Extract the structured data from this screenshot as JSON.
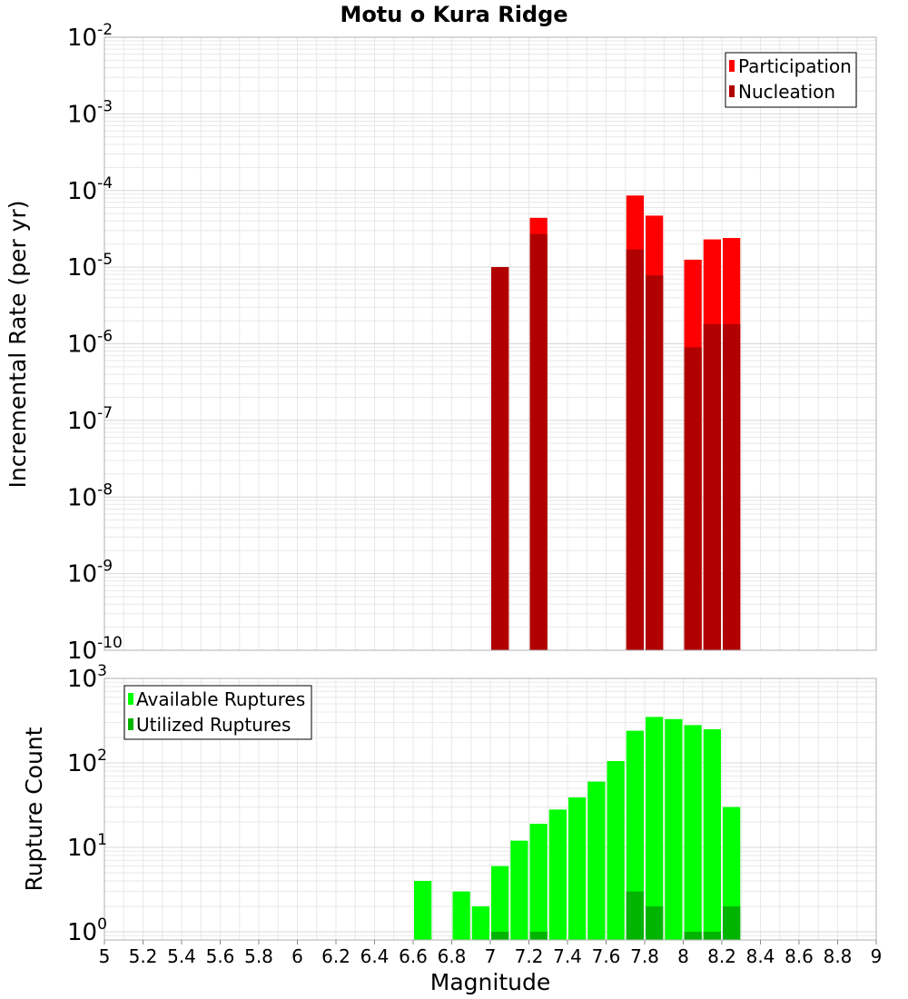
{
  "colors": {
    "participation": "#ff0000",
    "nucleation": "#b00000",
    "available": "#00ff00",
    "utilized": "#00b400",
    "grid": "#e8e8e8",
    "frame": "#b0b0b0"
  },
  "chart_data": {
    "title": "Motu o Kura Ridge",
    "xlabel": "Magnitude",
    "xlim": [
      5,
      9
    ],
    "x_ticks": [
      "5",
      "5.2",
      "5.4",
      "5.6",
      "5.8",
      "6",
      "6.2",
      "6.4",
      "6.6",
      "6.8",
      "7",
      "7.2",
      "7.4",
      "7.6",
      "7.8",
      "8",
      "8.2",
      "8.4",
      "8.6",
      "8.8",
      "9"
    ],
    "grid": true,
    "panels": [
      {
        "type": "bar",
        "ylabel": "Incremental Rate (per yr)",
        "yscale": "log",
        "ylim": [
          1e-10,
          0.01
        ],
        "y_ticks": [
          {
            "base": "10",
            "exp": "-10"
          },
          {
            "base": "10",
            "exp": "-9"
          },
          {
            "base": "10",
            "exp": "-8"
          },
          {
            "base": "10",
            "exp": "-7"
          },
          {
            "base": "10",
            "exp": "-6"
          },
          {
            "base": "10",
            "exp": "-5"
          },
          {
            "base": "10",
            "exp": "-4"
          },
          {
            "base": "10",
            "exp": "-3"
          },
          {
            "base": "10",
            "exp": "-2"
          }
        ],
        "legend_position": "top-right",
        "x": [
          7.05,
          7.25,
          7.75,
          7.85,
          8.05,
          8.15,
          8.25
        ],
        "series": [
          {
            "name": "Participation",
            "color_key": "participation",
            "values": [
              1e-05,
              4.4e-05,
              8.6e-05,
              4.7e-05,
              1.25e-05,
              2.3e-05,
              2.4e-05
            ]
          },
          {
            "name": "Nucleation",
            "color_key": "nucleation",
            "values": [
              1e-05,
              2.7e-05,
              1.7e-05,
              7.8e-06,
              9e-07,
              1.8e-06,
              1.8e-06
            ]
          }
        ]
      },
      {
        "type": "bar",
        "ylabel": "Rupture Count",
        "yscale": "log",
        "ylim": [
          0.8,
          1000
        ],
        "y_ticks": [
          {
            "base": "10",
            "exp": "0"
          },
          {
            "base": "10",
            "exp": "1"
          },
          {
            "base": "10",
            "exp": "2"
          },
          {
            "base": "10",
            "exp": "3"
          }
        ],
        "legend_position": "top-left",
        "x": [
          6.65,
          6.85,
          6.95,
          7.05,
          7.15,
          7.25,
          7.35,
          7.45,
          7.55,
          7.65,
          7.75,
          7.85,
          7.95,
          8.05,
          8.15,
          8.25
        ],
        "series": [
          {
            "name": "Available Ruptures",
            "color_key": "available",
            "values": [
              4,
              3,
              2,
              6,
              12,
              19,
              28,
              39,
              60,
              105,
              240,
              350,
              330,
              280,
              250,
              30
            ]
          },
          {
            "name": "Utilized Ruptures",
            "color_key": "utilized",
            "values": [
              0,
              0,
              0,
              1,
              0,
              1,
              0,
              0,
              0,
              0,
              3,
              2,
              0,
              1,
              1,
              2
            ]
          }
        ]
      }
    ]
  }
}
